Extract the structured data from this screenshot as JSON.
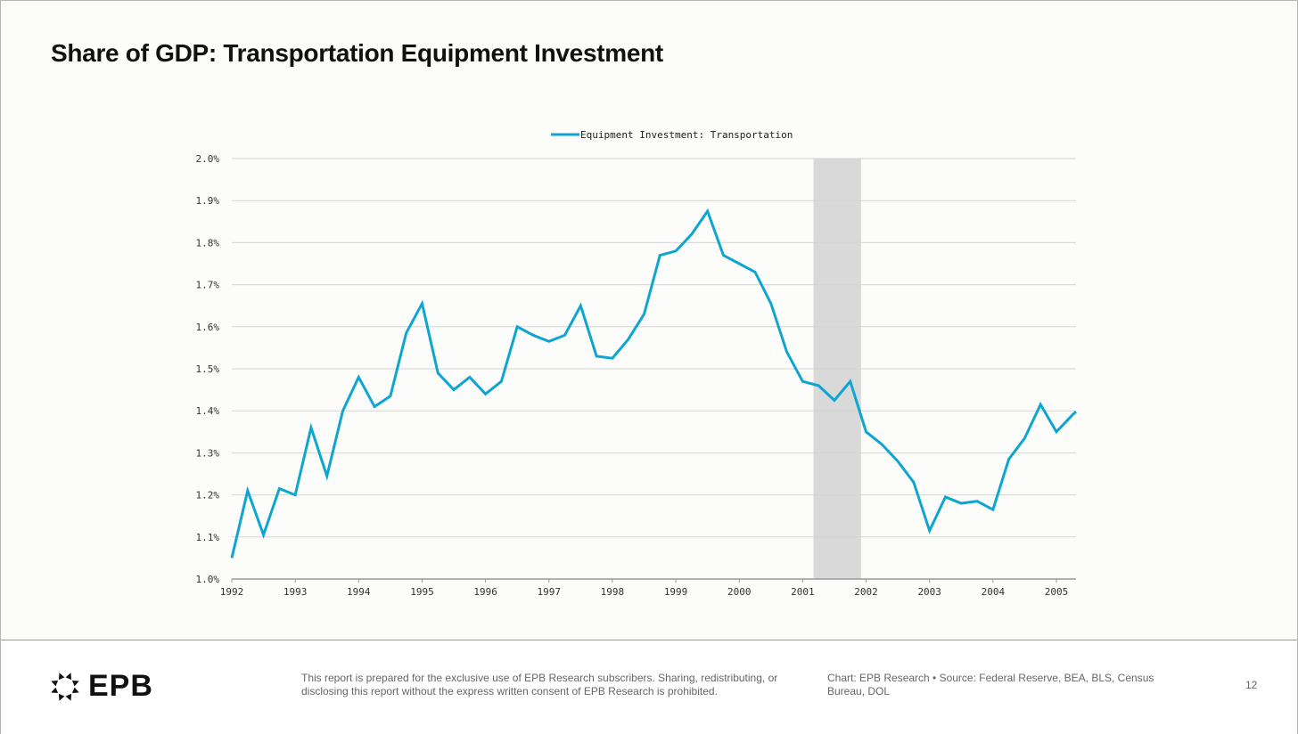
{
  "title": "Share of GDP: Transportation Equipment Investment",
  "colors": {
    "line": "#0ea5d0",
    "recession": "#d9d9d9",
    "grid": "#d4d4d4"
  },
  "chart_data": {
    "type": "line",
    "title": "Share of GDP: Transportation Equipment Investment",
    "xlabel": "",
    "ylabel": "",
    "legend": "top-center",
    "grid": true,
    "xlim": [
      1992,
      2005.31
    ],
    "ylim": [
      1.0,
      2.0
    ],
    "y_ticks": [
      "1.0%",
      "1.1%",
      "1.2%",
      "1.3%",
      "1.4%",
      "1.5%",
      "1.6%",
      "1.7%",
      "1.8%",
      "1.9%",
      "2.0%"
    ],
    "x_ticks": [
      "1992",
      "1993",
      "1994",
      "1995",
      "1996",
      "1997",
      "1998",
      "1999",
      "2000",
      "2001",
      "2002",
      "2003",
      "2004",
      "2005"
    ],
    "recessions": [
      [
        2001.17,
        2001.92
      ]
    ],
    "series": [
      {
        "name": "Equipment Investment: Transportation",
        "start": 1992.0,
        "step": 0.25,
        "values": [
          1.05,
          1.21,
          1.105,
          1.215,
          1.2,
          1.36,
          1.245,
          1.4,
          1.48,
          1.41,
          1.435,
          1.585,
          1.655,
          1.49,
          1.45,
          1.48,
          1.44,
          1.47,
          1.6,
          1.58,
          1.565,
          1.58,
          1.65,
          1.53,
          1.525,
          1.57,
          1.63,
          1.77,
          1.78,
          1.82,
          1.875,
          1.77,
          1.75,
          1.73,
          1.655,
          1.54,
          1.47,
          1.46,
          1.425,
          1.47,
          1.35,
          1.32,
          1.28,
          1.23,
          1.115,
          1.195,
          1.18,
          1.185,
          1.165,
          1.285,
          1.335,
          1.415,
          1.35,
          1.39
        ]
      }
    ]
  },
  "footer": {
    "logo": "EPB",
    "disclaimer": "This report is prepared for the exclusive use of EPB Research subscribers. Sharing, redistributing, or disclosing this report without the express written consent of EPB Research is prohibited.",
    "source": "Chart: EPB Research  •  Source: Federal Reserve, BEA, BLS, Census Bureau, DOL",
    "page": "12"
  }
}
